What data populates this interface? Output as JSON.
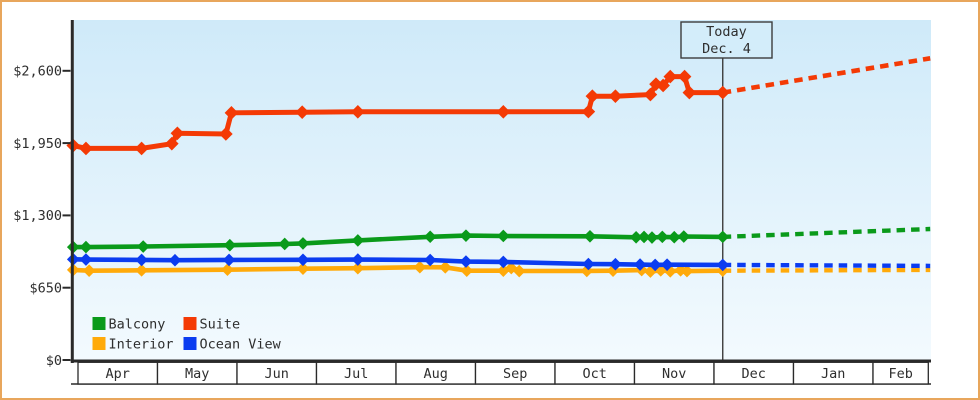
{
  "frame": {
    "border_color": "#e8a65c",
    "background": "#ffffff"
  },
  "chart_data": {
    "type": "line",
    "description": "Cabin price history by category with dashed forecast after today",
    "x_unit": "months since Apr 1 (0 = Apr, fractional = day within month)",
    "y_axis": {
      "range": [
        0,
        3055
      ],
      "ticks": [
        {
          "value": 0,
          "label": "$0"
        },
        {
          "value": 650,
          "label": "$650"
        },
        {
          "value": 1300,
          "label": "$1,300"
        },
        {
          "value": 1950,
          "label": "$1,950"
        },
        {
          "value": 2600,
          "label": "$2,600"
        }
      ]
    },
    "x_axis": {
      "month_labels": [
        "Apr",
        "May",
        "Jun",
        "Jul",
        "Aug",
        "Sep",
        "Oct",
        "Nov",
        "Dec",
        "Jan",
        "Feb"
      ]
    },
    "today_marker": {
      "line1": "Today",
      "line2": "Dec. 4",
      "month_position": 8.11
    },
    "plot_background": {
      "top_color": "#cfeaf9",
      "bottom_color": "#f3fafe"
    },
    "axis_color": "#2a2a2a",
    "series": [
      {
        "name": "Interior",
        "color": "#ffaa0a",
        "solid_points": [
          [
            -0.06,
            810
          ],
          [
            0.14,
            803
          ],
          [
            0.8,
            806
          ],
          [
            1.88,
            812
          ],
          [
            2.83,
            821
          ],
          [
            3.52,
            825
          ],
          [
            4.3,
            834
          ],
          [
            4.62,
            833
          ],
          [
            4.89,
            803
          ],
          [
            5.35,
            803
          ],
          [
            5.45,
            826
          ],
          [
            5.55,
            800
          ],
          [
            6.4,
            801
          ],
          [
            6.73,
            803
          ],
          [
            7.09,
            808
          ],
          [
            7.2,
            795
          ],
          [
            7.33,
            806
          ],
          [
            7.45,
            797
          ],
          [
            7.58,
            806
          ],
          [
            7.66,
            799
          ],
          [
            8.11,
            803
          ]
        ],
        "forecast_points": [
          [
            8.11,
            803
          ],
          [
            10.72,
            810
          ]
        ]
      },
      {
        "name": "Ocean View",
        "color": "#0b3cf0",
        "solid_points": [
          [
            -0.06,
            905
          ],
          [
            0.1,
            903
          ],
          [
            0.8,
            900
          ],
          [
            1.22,
            897
          ],
          [
            1.9,
            900
          ],
          [
            2.83,
            901
          ],
          [
            3.52,
            903
          ],
          [
            4.43,
            899
          ],
          [
            4.88,
            885
          ],
          [
            5.35,
            882
          ],
          [
            6.42,
            863
          ],
          [
            6.76,
            861
          ],
          [
            7.07,
            858
          ],
          [
            7.26,
            855
          ],
          [
            7.41,
            857
          ],
          [
            8.11,
            855
          ]
        ],
        "forecast_points": [
          [
            8.11,
            855
          ],
          [
            10.72,
            846
          ]
        ]
      },
      {
        "name": "Balcony",
        "color": "#0a9a1a",
        "solid_points": [
          [
            -0.06,
            1015
          ],
          [
            0.1,
            1015
          ],
          [
            0.82,
            1020
          ],
          [
            1.91,
            1032
          ],
          [
            2.6,
            1043
          ],
          [
            2.83,
            1048
          ],
          [
            3.52,
            1075
          ],
          [
            4.43,
            1108
          ],
          [
            4.88,
            1118
          ],
          [
            5.35,
            1115
          ],
          [
            6.44,
            1112
          ],
          [
            7.02,
            1103
          ],
          [
            7.12,
            1106
          ],
          [
            7.22,
            1101
          ],
          [
            7.35,
            1107
          ],
          [
            7.5,
            1104
          ],
          [
            7.62,
            1110
          ],
          [
            8.11,
            1107
          ]
        ],
        "forecast_points": [
          [
            8.11,
            1107
          ],
          [
            10.72,
            1178
          ]
        ]
      },
      {
        "name": "Suite",
        "color": "#f43a05",
        "solid_points": [
          [
            -0.06,
            1928
          ],
          [
            0.1,
            1902
          ],
          [
            0.8,
            1902
          ],
          [
            1.18,
            1945
          ],
          [
            1.25,
            2038
          ],
          [
            1.86,
            2032
          ],
          [
            1.93,
            2222
          ],
          [
            2.82,
            2228
          ],
          [
            3.52,
            2231
          ],
          [
            5.35,
            2231
          ],
          [
            6.42,
            2233
          ],
          [
            6.47,
            2372
          ],
          [
            6.76,
            2372
          ],
          [
            7.2,
            2386
          ],
          [
            7.27,
            2480
          ],
          [
            7.36,
            2468
          ],
          [
            7.45,
            2548
          ],
          [
            7.63,
            2548
          ],
          [
            7.69,
            2404
          ],
          [
            8.11,
            2404
          ]
        ],
        "forecast_points": [
          [
            8.11,
            2404
          ],
          [
            10.72,
            2712
          ]
        ]
      }
    ],
    "legend": {
      "position": "bottom-left",
      "entries": [
        {
          "label": "Balcony",
          "color": "#0a9a1a"
        },
        {
          "label": "Suite",
          "color": "#f43a05"
        },
        {
          "label": "Interior",
          "color": "#ffaa0a"
        },
        {
          "label": "Ocean View",
          "color": "#0b3cf0"
        }
      ]
    }
  }
}
